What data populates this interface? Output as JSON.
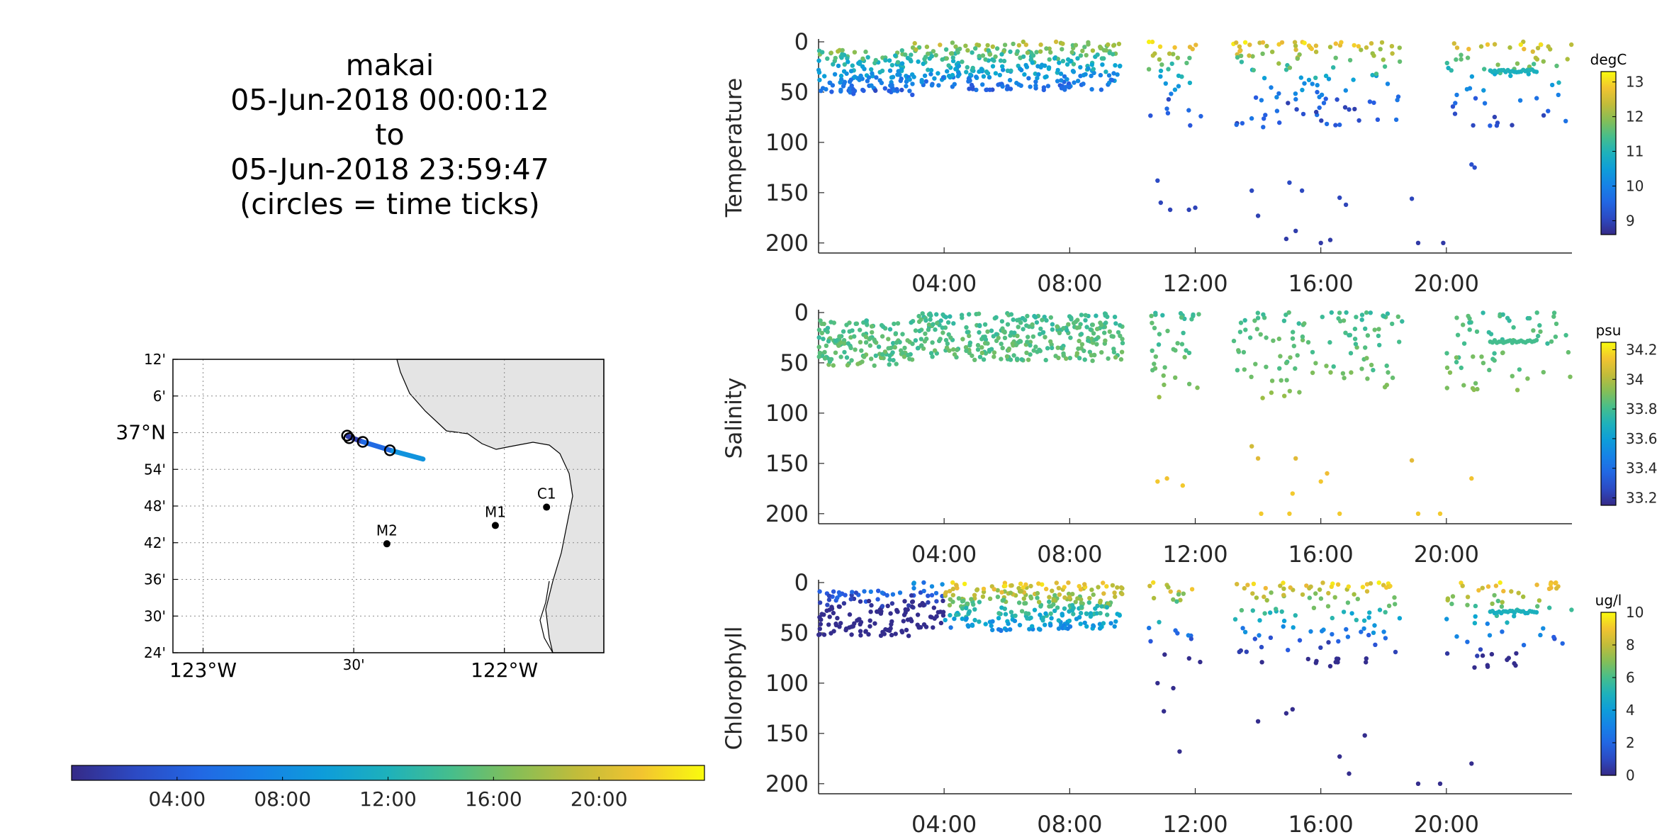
{
  "header": {
    "vehicle": "makai",
    "start": "05-Jun-2018 00:00:12",
    "to": "to",
    "end": "05-Jun-2018 23:59:47",
    "note": "(circles = time ticks)"
  },
  "map": {
    "lat_ticks": [
      {
        "lat": 37.2,
        "label": "12'"
      },
      {
        "lat": 37.1,
        "label": "6'"
      },
      {
        "lat": 37.0,
        "label": "37°N"
      },
      {
        "lat": 36.9,
        "label": "54'"
      },
      {
        "lat": 36.8,
        "label": "48'"
      },
      {
        "lat": 36.7,
        "label": "42'"
      },
      {
        "lat": 36.6,
        "label": "36'"
      },
      {
        "lat": 36.5,
        "label": "30'"
      },
      {
        "lat": 36.4,
        "label": "24'"
      }
    ],
    "lon_ticks": [
      {
        "lon": -123.0,
        "label": "123°W"
      },
      {
        "lon": -122.5,
        "label": "30'"
      },
      {
        "lon": -122.0,
        "label": "122°W"
      }
    ],
    "lon_range": [
      -123.1,
      -121.67
    ],
    "lat_range": [
      36.4,
      37.2
    ],
    "stations": [
      {
        "name": "M2",
        "lon": -122.39,
        "lat": 36.697
      },
      {
        "name": "M1",
        "lon": -122.03,
        "lat": 36.747
      },
      {
        "name": "C1",
        "lon": -121.86,
        "lat": 36.797
      }
    ],
    "track": [
      {
        "lon": -122.52,
        "lat": 36.99,
        "t": 0.0
      },
      {
        "lon": -122.47,
        "lat": 36.975,
        "t": 3.0
      },
      {
        "lon": -122.37,
        "lat": 36.95,
        "t": 7.0
      },
      {
        "lon": -122.27,
        "lat": 36.928,
        "t": 10.5
      }
    ],
    "time_tick_circles": [
      {
        "lon": -122.522,
        "lat": 36.992
      },
      {
        "lon": -122.515,
        "lat": 36.985
      },
      {
        "lon": -122.47,
        "lat": 36.975
      },
      {
        "lon": -122.38,
        "lat": 36.952
      }
    ]
  },
  "time_colorbar": {
    "range_hours": [
      0,
      24
    ],
    "ticks": [
      {
        "t": 4,
        "label": "04:00"
      },
      {
        "t": 8,
        "label": "08:00"
      },
      {
        "t": 12,
        "label": "12:00"
      },
      {
        "t": 16,
        "label": "16:00"
      },
      {
        "t": 20,
        "label": "20:00"
      }
    ]
  },
  "chart_data": [
    {
      "type": "scatter",
      "ylabel": "Temperature",
      "units": "degC",
      "ylim": [
        210,
        0
      ],
      "yticks": [
        0,
        50,
        100,
        150,
        200
      ],
      "xlim_hours": [
        0,
        24
      ],
      "xticks": [
        {
          "t": 4,
          "label": "04:00"
        },
        {
          "t": 8,
          "label": "08:00"
        },
        {
          "t": 12,
          "label": "12:00"
        },
        {
          "t": 16,
          "label": "16:00"
        },
        {
          "t": 20,
          "label": "20:00"
        }
      ],
      "clim": [
        8.6,
        13.3
      ],
      "cticks": [
        9,
        10,
        11,
        12,
        13
      ],
      "gap_hours": [
        [
          9.7,
          10.5
        ],
        [
          12.2,
          13.2
        ],
        [
          18.6,
          20.0
        ]
      ],
      "deep_points": [
        [
          10.8,
          138
        ],
        [
          10.9,
          160
        ],
        [
          11.2,
          167
        ],
        [
          11.8,
          167
        ],
        [
          12.0,
          165
        ],
        [
          13.8,
          148
        ],
        [
          14.0,
          173
        ],
        [
          14.9,
          196
        ],
        [
          15.2,
          188
        ],
        [
          15.0,
          140
        ],
        [
          15.4,
          148
        ],
        [
          16.0,
          200
        ],
        [
          16.3,
          197
        ],
        [
          16.6,
          155
        ],
        [
          16.8,
          162
        ],
        [
          19.1,
          200
        ],
        [
          19.9,
          200
        ],
        [
          18.9,
          156
        ],
        [
          20.8,
          122
        ],
        [
          20.9,
          125
        ]
      ]
    },
    {
      "type": "scatter",
      "ylabel": "Salinity",
      "units": "psu",
      "ylim": [
        210,
        0
      ],
      "yticks": [
        0,
        50,
        100,
        150,
        200
      ],
      "xlim_hours": [
        0,
        24
      ],
      "xticks": [
        {
          "t": 4,
          "label": "04:00"
        },
        {
          "t": 8,
          "label": "08:00"
        },
        {
          "t": 12,
          "label": "12:00"
        },
        {
          "t": 16,
          "label": "16:00"
        },
        {
          "t": 20,
          "label": "20:00"
        }
      ],
      "clim": [
        33.15,
        34.25
      ],
      "cticks": [
        33.2,
        33.4,
        33.6,
        33.8,
        34,
        34.2
      ],
      "gap_hours": [
        [
          9.7,
          10.5
        ],
        [
          12.2,
          13.2
        ],
        [
          18.6,
          20.0
        ]
      ],
      "deep_points": [
        [
          10.8,
          168
        ],
        [
          11.1,
          165
        ],
        [
          11.6,
          172
        ],
        [
          13.8,
          133
        ],
        [
          14.0,
          145
        ],
        [
          14.1,
          200
        ],
        [
          15.0,
          200
        ],
        [
          15.1,
          180
        ],
        [
          15.2,
          145
        ],
        [
          16.0,
          168
        ],
        [
          16.2,
          160
        ],
        [
          16.6,
          200
        ],
        [
          19.1,
          200
        ],
        [
          19.8,
          200
        ],
        [
          18.9,
          147
        ],
        [
          20.8,
          165
        ]
      ]
    },
    {
      "type": "scatter",
      "ylabel": "Chlorophyll",
      "units": "ug/l",
      "ylim": [
        210,
        0
      ],
      "yticks": [
        0,
        50,
        100,
        150,
        200
      ],
      "xlim_hours": [
        0,
        24
      ],
      "xticks": [
        {
          "t": 4,
          "label": "04:00"
        },
        {
          "t": 8,
          "label": "08:00"
        },
        {
          "t": 12,
          "label": "12:00"
        },
        {
          "t": 16,
          "label": "16:00"
        },
        {
          "t": 20,
          "label": "20:00"
        }
      ],
      "clim": [
        0,
        10
      ],
      "cticks": [
        0,
        2,
        4,
        6,
        8,
        10
      ],
      "gap_hours": [
        [
          9.7,
          10.5
        ],
        [
          12.2,
          13.2
        ],
        [
          18.6,
          20.0
        ]
      ],
      "deep_points": [
        [
          10.8,
          100
        ],
        [
          11.0,
          128
        ],
        [
          11.5,
          168
        ],
        [
          11.3,
          105
        ],
        [
          14.0,
          138
        ],
        [
          14.9,
          130
        ],
        [
          15.1,
          126
        ],
        [
          16.6,
          173
        ],
        [
          16.9,
          190
        ],
        [
          17.4,
          152
        ],
        [
          19.1,
          200
        ],
        [
          19.8,
          200
        ],
        [
          20.8,
          180
        ]
      ]
    }
  ]
}
